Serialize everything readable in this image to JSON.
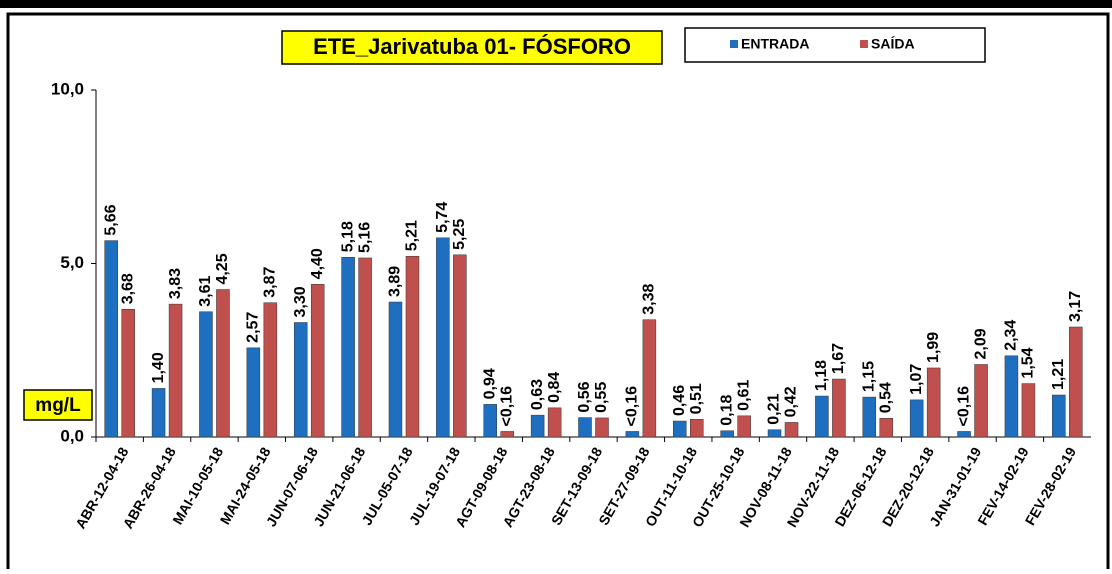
{
  "chart_data": {
    "type": "bar",
    "title": "ETE_Jarivatuba 01- FÓSFORO",
    "y_label": "mg/L",
    "categories": [
      "ABR-12-04-18",
      "ABR-26-04-18",
      "MAI-10-05-18",
      "MAI-24-05-18",
      "JUN-07-06-18",
      "JUN-21-06-18",
      "JUL-05-07-18",
      "JUL-19-07-18",
      "AGT-09-08-18",
      "AGT-23-08-18",
      "SET-13-09-18",
      "SET-27-09-18",
      "OUT-11-10-18",
      "OUT-25-10-18",
      "NOV-08-11-18",
      "NOV-22-11-18",
      "DEZ-06-12-18",
      "DEZ-20-12-18",
      "JAN-31-01-19",
      "FEV-14-02-19",
      "FEV-28-02-19"
    ],
    "series": [
      {
        "name": "ENTRADA",
        "color": "#1f6fc0",
        "values": [
          5.66,
          1.4,
          3.61,
          2.57,
          3.3,
          5.18,
          3.89,
          5.74,
          0.94,
          0.63,
          0.56,
          0.16,
          0.46,
          0.18,
          0.21,
          1.18,
          1.15,
          1.07,
          0.16,
          2.34,
          1.21
        ],
        "value_labels": [
          "5,66",
          "1,40",
          "3,61",
          "2,57",
          "3,30",
          "5,18",
          "3,89",
          "5,74",
          "0,94",
          "0,63",
          "0,56",
          "<0,16",
          "0,46",
          "0,18",
          "0,21",
          "1,18",
          "1,15",
          "1,07",
          "<0,16",
          "2,34",
          "1,21"
        ]
      },
      {
        "name": "SAÍDA",
        "color": "#c0504d",
        "values": [
          3.68,
          3.83,
          4.25,
          3.87,
          4.4,
          5.16,
          5.21,
          5.25,
          0.16,
          0.84,
          0.55,
          3.38,
          0.51,
          0.61,
          0.42,
          1.67,
          0.54,
          1.99,
          2.09,
          1.54,
          3.17
        ],
        "value_labels": [
          "3,68",
          "3,83",
          "4,25",
          "3,87",
          "4,40",
          "5,16",
          "5,21",
          "5,25",
          "<0,16",
          "0,84",
          "0,55",
          "3,38",
          "0,51",
          "0,61",
          "0,42",
          "1,67",
          "0,54",
          "1,99",
          "2,09",
          "1,54",
          "3,17"
        ]
      }
    ],
    "ylim": [
      0,
      10
    ],
    "yticks": [
      {
        "value": 0,
        "label": "0,0"
      },
      {
        "value": 5,
        "label": "5,0"
      },
      {
        "value": 10,
        "label": "10,0"
      }
    ],
    "grid": false
  }
}
